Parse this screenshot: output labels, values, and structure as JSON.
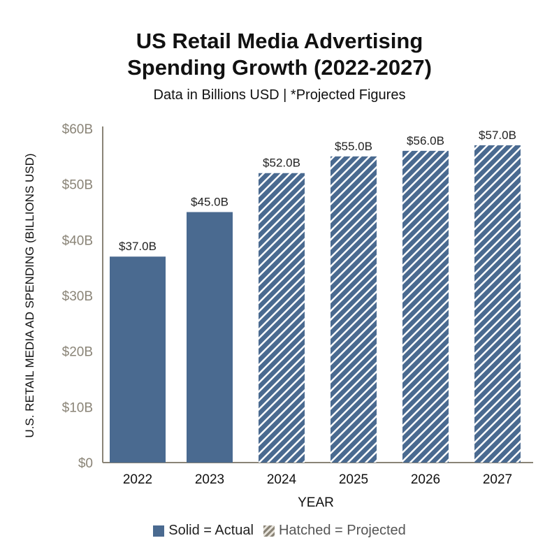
{
  "chart_data": {
    "type": "bar",
    "title_line1": "US Retail Media Advertising",
    "title_line2": "Spending Growth (2022-2027)",
    "subtitle": "Data in Billions USD | *Projected Figures",
    "xlabel": "YEAR",
    "ylabel": "U.S. RETAIL MEDIA AD SPENDING (BILLIONS USD)",
    "categories": [
      "2022",
      "2023",
      "2024",
      "2025",
      "2026",
      "2027"
    ],
    "values": [
      37,
      45,
      52,
      55,
      56,
      57
    ],
    "data_labels": [
      "$37.0B",
      "$45.0B",
      "$52.0B",
      "$55.0B",
      "$56.0B",
      "$57.0B"
    ],
    "projected": [
      false,
      false,
      true,
      true,
      true,
      true
    ],
    "ylim": [
      0,
      60
    ],
    "yticks": [
      0,
      10,
      20,
      30,
      40,
      50,
      60
    ],
    "ytick_labels": [
      "$0",
      "$10B",
      "$20B",
      "$30B",
      "$40B",
      "$50B",
      "$60B"
    ],
    "grid": false,
    "legend": {
      "placement": "bottom",
      "items": [
        "Solid = Actual",
        "Hatched = Projected"
      ]
    },
    "colors": {
      "bar": "#4a6a90",
      "axis": "#8a8477",
      "tick_label": "#8a8477"
    }
  }
}
